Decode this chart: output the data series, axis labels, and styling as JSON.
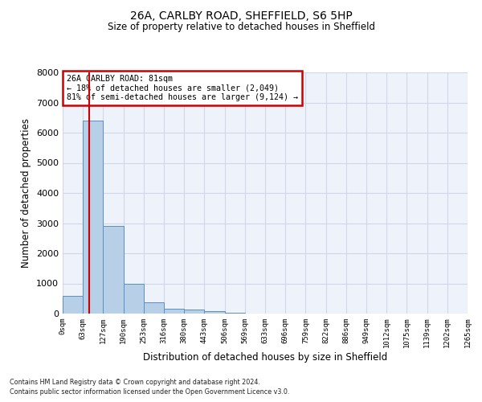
{
  "title1": "26A, CARLBY ROAD, SHEFFIELD, S6 5HP",
  "title2": "Size of property relative to detached houses in Sheffield",
  "xlabel": "Distribution of detached houses by size in Sheffield",
  "ylabel": "Number of detached properties",
  "annotation_lines": [
    "26A CARLBY ROAD: 81sqm",
    "← 18% of detached houses are smaller (2,049)",
    "81% of semi-detached houses are larger (9,124) →"
  ],
  "footer1": "Contains HM Land Registry data © Crown copyright and database right 2024.",
  "footer2": "Contains public sector information licensed under the Open Government Licence v3.0.",
  "bar_values": [
    600,
    6400,
    2900,
    1000,
    380,
    170,
    130,
    90,
    30,
    10,
    5,
    3,
    2,
    1,
    0,
    0,
    0,
    0,
    0,
    0
  ],
  "bin_labels": [
    "0sqm",
    "63sqm",
    "127sqm",
    "190sqm",
    "253sqm",
    "316sqm",
    "380sqm",
    "443sqm",
    "506sqm",
    "569sqm",
    "633sqm",
    "696sqm",
    "759sqm",
    "822sqm",
    "886sqm",
    "949sqm",
    "1012sqm",
    "1075sqm",
    "1139sqm",
    "1202sqm",
    "1265sqm"
  ],
  "bar_color": "#b8cfe8",
  "bar_edge_color": "#5b8ec4",
  "vline_x": 1.29,
  "vline_color": "#cc0000",
  "annotation_box_color": "#cc0000",
  "bg_color": "#eef2fb",
  "grid_color": "#d0d8e8",
  "ylim": [
    0,
    8000
  ],
  "yticks": [
    0,
    1000,
    2000,
    3000,
    4000,
    5000,
    6000,
    7000,
    8000
  ]
}
